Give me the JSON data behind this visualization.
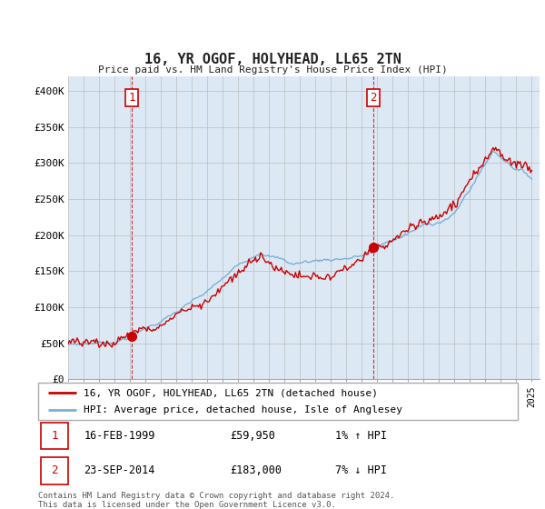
{
  "title": "16, YR OGOF, HOLYHEAD, LL65 2TN",
  "subtitle": "Price paid vs. HM Land Registry's House Price Index (HPI)",
  "ylabel_ticks": [
    "£0",
    "£50K",
    "£100K",
    "£150K",
    "£200K",
    "£250K",
    "£300K",
    "£350K",
    "£400K"
  ],
  "ytick_values": [
    0,
    50000,
    100000,
    150000,
    200000,
    250000,
    300000,
    350000,
    400000
  ],
  "ylim": [
    0,
    420000
  ],
  "xlim_start": 1995.0,
  "xlim_end": 2025.5,
  "sale1_x": 1999.12,
  "sale1_y": 59950,
  "sale2_x": 2014.73,
  "sale2_y": 183000,
  "marker_color": "#cc0000",
  "hpi_color": "#7ab0d4",
  "price_line_color": "#cc0000",
  "annotation_box_color": "#cc0000",
  "plot_bg_color": "#dce9f5",
  "legend_line1": "16, YR OGOF, HOLYHEAD, LL65 2TN (detached house)",
  "legend_line2": "HPI: Average price, detached house, Isle of Anglesey",
  "table_row1": [
    "1",
    "16-FEB-1999",
    "£59,950",
    "1% ↑ HPI"
  ],
  "table_row2": [
    "2",
    "23-SEP-2014",
    "£183,000",
    "7% ↓ HPI"
  ],
  "footnote": "Contains HM Land Registry data © Crown copyright and database right 2024.\nThis data is licensed under the Open Government Licence v3.0.",
  "bg_color": "#ffffff",
  "grid_color": "#bbbbbb",
  "font_color": "#222222"
}
